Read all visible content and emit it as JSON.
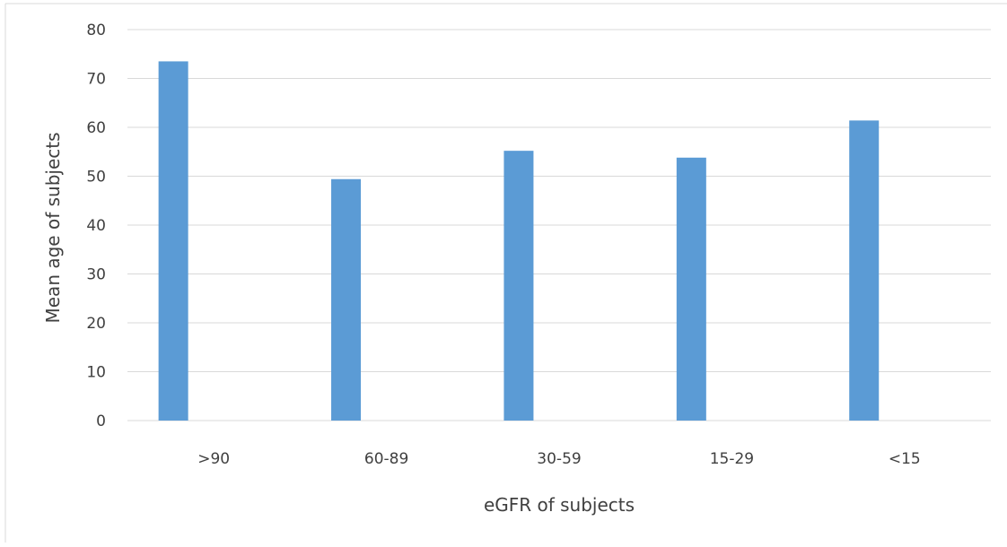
{
  "chart_data": {
    "type": "bar",
    "title": "",
    "xlabel": "eGFR of subjects",
    "ylabel": "Mean age of subjects",
    "categories": [
      ">90",
      "60-89",
      "30-59",
      "15-29",
      "<15"
    ],
    "series": [
      {
        "values": [
          73.5,
          49.4,
          55.2,
          53.8,
          61.4
        ]
      }
    ],
    "ylim": [
      0,
      80
    ],
    "yticks": [
      0,
      10,
      20,
      30,
      40,
      50,
      60,
      70,
      80
    ],
    "grid": true,
    "legend": "none",
    "bar_color": "#5b9bd5",
    "grid_color": "#d9d9d9",
    "text_color": "#404040"
  }
}
